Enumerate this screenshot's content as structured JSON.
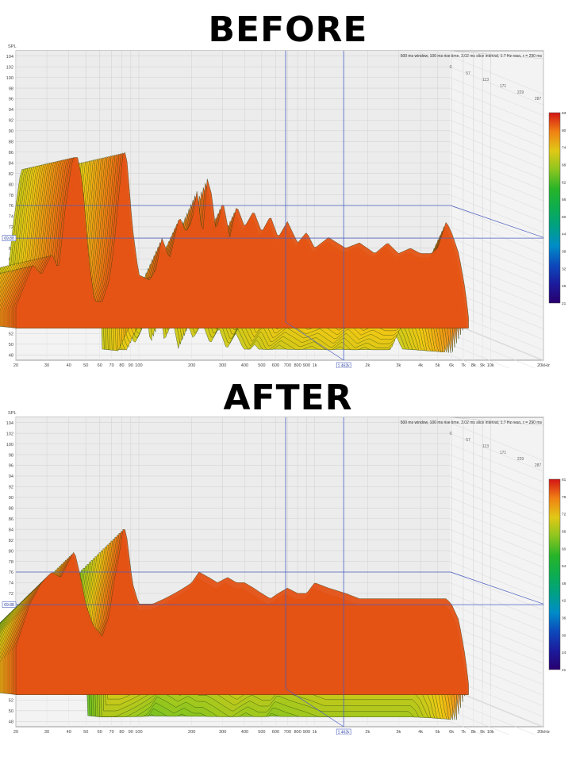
{
  "headings": {
    "before": "BEFORE",
    "after": "AFTER"
  },
  "chart_data": [
    {
      "type": "waterfall",
      "title": "BEFORE",
      "info_text": "500 ms window, 100 ms rise time, 3.02 ms slice interval, 1.7 Hz resn, τ = 290 ms",
      "y_axis_label": "SPL",
      "y_ticks": [
        "104",
        "102",
        "100",
        "98",
        "96",
        "94",
        "92",
        "90",
        "88",
        "86",
        "84",
        "82",
        "80",
        "78",
        "76",
        "74",
        "72",
        "70",
        "68",
        "66",
        "64",
        "62",
        "60",
        "58",
        "56",
        "54",
        "52",
        "50",
        "48"
      ],
      "ylim": [
        47,
        105
      ],
      "x_ticks": [
        "20",
        "30",
        "40",
        "50",
        "60",
        "70",
        "80",
        "90",
        "100",
        "200",
        "300",
        "400",
        "500",
        "600",
        "700",
        "800",
        "900",
        "1k",
        "2k",
        "3k",
        "4k",
        "5k",
        "6k",
        "7k",
        "8k",
        "9k",
        "10k",
        "20kHz"
      ],
      "x_scale": "log",
      "xlim": [
        20,
        20000
      ],
      "time_labels": [
        "0",
        "57",
        "113",
        "171",
        "229",
        "287"
      ],
      "cursor_spl": "69.88",
      "cursor_freq": "1.462k",
      "colorbar_ticks": [
        "83",
        "80",
        "74",
        "68",
        "62",
        "56",
        "50",
        "44",
        "38",
        "32",
        "26",
        "21"
      ],
      "colorbar_range": [
        21,
        83
      ],
      "front_slice": [
        [
          20,
          57
        ],
        [
          25,
          65
        ],
        [
          28,
          63
        ],
        [
          32,
          67
        ],
        [
          35,
          64
        ],
        [
          38,
          75
        ],
        [
          42,
          85
        ],
        [
          45,
          85
        ],
        [
          48,
          80
        ],
        [
          52,
          66
        ],
        [
          56,
          58
        ],
        [
          62,
          58
        ],
        [
          68,
          62
        ],
        [
          72,
          68
        ],
        [
          78,
          80
        ],
        [
          82,
          87
        ],
        [
          86,
          84
        ],
        [
          92,
          72
        ],
        [
          100,
          63
        ],
        [
          115,
          62
        ],
        [
          125,
          64
        ],
        [
          135,
          70
        ],
        [
          150,
          66
        ],
        [
          170,
          74
        ],
        [
          185,
          71
        ],
        [
          200,
          73
        ],
        [
          215,
          79
        ],
        [
          230,
          70
        ],
        [
          245,
          81
        ],
        [
          260,
          78
        ],
        [
          275,
          71
        ],
        [
          300,
          77
        ],
        [
          330,
          70
        ],
        [
          360,
          76
        ],
        [
          400,
          72
        ],
        [
          450,
          75
        ],
        [
          500,
          71
        ],
        [
          560,
          74
        ],
        [
          620,
          70
        ],
        [
          700,
          73
        ],
        [
          800,
          69
        ],
        [
          900,
          71
        ],
        [
          1000,
          68
        ],
        [
          1200,
          70
        ],
        [
          1500,
          68
        ],
        [
          1800,
          69
        ],
        [
          2200,
          67
        ],
        [
          2600,
          69
        ],
        [
          3000,
          67
        ],
        [
          3500,
          68
        ],
        [
          4000,
          67
        ],
        [
          4600,
          67
        ],
        [
          5000,
          68
        ],
        [
          5600,
          73
        ],
        [
          6000,
          71
        ],
        [
          6600,
          67
        ],
        [
          7200,
          60
        ],
        [
          7500,
          55
        ]
      ]
    },
    {
      "type": "waterfall",
      "title": "AFTER",
      "info_text": "500 ms window, 100 ms rise time, 3.02 ms slice interval, 1.7 Hz resn, τ = 290 ms",
      "y_axis_label": "SPL",
      "y_ticks": [
        "104",
        "102",
        "100",
        "98",
        "96",
        "94",
        "92",
        "90",
        "88",
        "86",
        "84",
        "82",
        "80",
        "78",
        "76",
        "74",
        "72",
        "70",
        "68",
        "66",
        "64",
        "62",
        "60",
        "58",
        "56",
        "54",
        "52",
        "50",
        "48"
      ],
      "ylim": [
        47,
        105
      ],
      "x_ticks": [
        "20",
        "30",
        "40",
        "50",
        "60",
        "70",
        "80",
        "90",
        "100",
        "200",
        "300",
        "400",
        "500",
        "600",
        "700",
        "800",
        "900",
        "1k",
        "2k",
        "3k",
        "4k",
        "5k",
        "6k",
        "7k",
        "8k",
        "9k",
        "10k",
        "20kHz"
      ],
      "x_scale": "log",
      "xlim": [
        20,
        20000
      ],
      "time_labels": [
        "0",
        "57",
        "113",
        "171",
        "229",
        "287"
      ],
      "cursor_spl": "69.88",
      "cursor_freq": "1.462k",
      "colorbar_ticks": [
        "81",
        "78",
        "72",
        "66",
        "60",
        "54",
        "48",
        "42",
        "36",
        "30",
        "24",
        "21"
      ],
      "colorbar_range": [
        21,
        81
      ],
      "front_slice": [
        [
          20,
          62
        ],
        [
          24,
          70
        ],
        [
          28,
          74
        ],
        [
          32,
          76
        ],
        [
          36,
          75
        ],
        [
          40,
          78
        ],
        [
          43,
          80
        ],
        [
          46,
          76
        ],
        [
          50,
          70
        ],
        [
          55,
          66
        ],
        [
          62,
          64
        ],
        [
          68,
          68
        ],
        [
          72,
          74
        ],
        [
          78,
          80
        ],
        [
          82,
          85
        ],
        [
          86,
          82
        ],
        [
          92,
          74
        ],
        [
          100,
          70
        ],
        [
          120,
          70
        ],
        [
          140,
          71
        ],
        [
          160,
          72
        ],
        [
          180,
          73
        ],
        [
          200,
          74
        ],
        [
          220,
          76
        ],
        [
          250,
          75
        ],
        [
          280,
          74
        ],
        [
          320,
          75
        ],
        [
          360,
          74
        ],
        [
          400,
          74
        ],
        [
          450,
          73
        ],
        [
          500,
          72
        ],
        [
          560,
          71
        ],
        [
          620,
          72
        ],
        [
          700,
          73
        ],
        [
          800,
          72
        ],
        [
          900,
          72
        ],
        [
          1000,
          74
        ],
        [
          1200,
          73
        ],
        [
          1500,
          72
        ],
        [
          1800,
          71
        ],
        [
          2200,
          71
        ],
        [
          2600,
          71
        ],
        [
          3000,
          71
        ],
        [
          3500,
          71
        ],
        [
          4000,
          71
        ],
        [
          4600,
          71
        ],
        [
          5000,
          71
        ],
        [
          5600,
          71
        ],
        [
          6000,
          70
        ],
        [
          6600,
          67
        ],
        [
          7200,
          60
        ],
        [
          7500,
          55
        ]
      ]
    }
  ]
}
